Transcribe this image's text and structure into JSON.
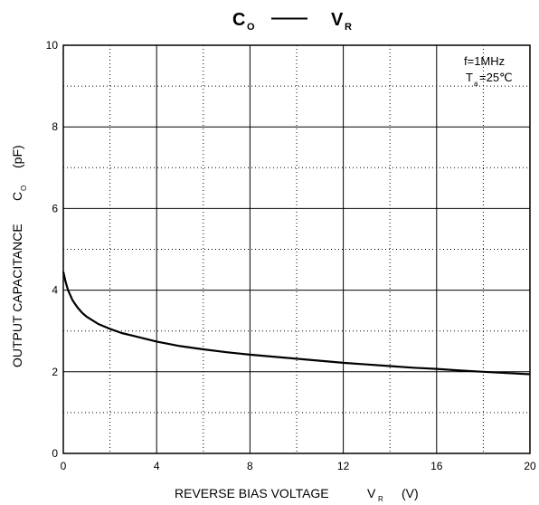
{
  "chart_data": {
    "type": "line",
    "title_left": "C",
    "title_left_sub": "O",
    "title_dash": "——",
    "title_right": "V",
    "title_right_sub": "R",
    "xlabel": "REVERSE BIAS VOLTAGE",
    "xlabel_sym": "V",
    "xlabel_sub": "R",
    "xlabel_unit": "(V)",
    "ylabel": "OUTPUT CAPACITANCE",
    "ylabel_sym": "C",
    "ylabel_sub": "O",
    "ylabel_unit": "(pF)",
    "xlim": [
      0,
      20
    ],
    "ylim": [
      0,
      10
    ],
    "x_ticks": [
      0,
      4,
      8,
      12,
      16,
      20
    ],
    "y_ticks": [
      0,
      2,
      4,
      6,
      8,
      10
    ],
    "grid": "solid major, dotted minor",
    "annotation_line1": "f=1MHz",
    "annotation_T": "T",
    "annotation_T_sub": "a",
    "annotation_T_val": "=25℃",
    "series": [
      {
        "x": [
          0,
          0.1,
          0.2,
          0.4,
          0.6,
          0.8,
          1.0,
          1.5,
          2.0,
          2.5,
          3.0,
          4.0,
          5.0,
          6.0,
          7.0,
          8.0,
          9.0,
          10.0,
          11.0,
          12.0,
          13.0,
          14.0,
          15.0,
          16.0,
          17.0,
          18.0,
          19.0,
          20.0
        ],
        "y": [
          4.45,
          4.2,
          4.0,
          3.75,
          3.58,
          3.45,
          3.35,
          3.17,
          3.05,
          2.95,
          2.88,
          2.74,
          2.63,
          2.55,
          2.48,
          2.42,
          2.37,
          2.32,
          2.27,
          2.22,
          2.18,
          2.14,
          2.1,
          2.07,
          2.03,
          2.0,
          1.97,
          1.94
        ]
      }
    ]
  },
  "colors": {
    "line": "#000000",
    "grid": "#000000",
    "background": "#ffffff"
  }
}
